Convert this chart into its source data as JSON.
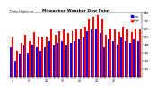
{
  "title": "Milwaukee Weather Dew Point",
  "subtitle": "Daily High/Low",
  "high_values": [
    48,
    32,
    42,
    52,
    44,
    55,
    50,
    48,
    50,
    60,
    52,
    56,
    58,
    54,
    56,
    58,
    60,
    62,
    72,
    74,
    76,
    72,
    52,
    60,
    58,
    55,
    62,
    58,
    55,
    60,
    58
  ],
  "low_values": [
    36,
    20,
    28,
    38,
    30,
    40,
    36,
    32,
    36,
    44,
    38,
    42,
    44,
    38,
    42,
    44,
    46,
    48,
    56,
    58,
    60,
    54,
    36,
    46,
    44,
    40,
    48,
    44,
    42,
    46,
    44
  ],
  "high_color": "#ff0000",
  "low_color": "#0000ff",
  "background_color": "#ffffff",
  "ymin": 0,
  "ymax": 80,
  "yticks": [
    10,
    20,
    30,
    40,
    50,
    60,
    70,
    80
  ],
  "xtick_labels": [
    "4",
    "",
    "",
    "",
    "8",
    "",
    "",
    "",
    "12",
    "",
    "",
    "",
    "16",
    "",
    "",
    "",
    "20",
    "",
    "",
    "",
    "24",
    "",
    "",
    "",
    "28",
    "",
    "",
    "",
    "",
    "",
    ""
  ]
}
